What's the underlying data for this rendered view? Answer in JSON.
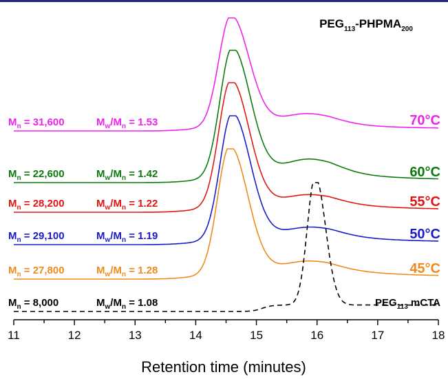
{
  "chart_data": {
    "type": "line",
    "title_parts": {
      "base1": "PEG",
      "sub1": "113",
      "mid": "-PHPMA",
      "sub2": "200"
    },
    "xlabel": "Retention time (minutes)",
    "xlim": [
      11,
      18
    ],
    "x_ticks": [
      "11",
      "12",
      "13",
      "14",
      "15",
      "16",
      "17",
      "18"
    ],
    "grid": false,
    "series": [
      {
        "name": "70°C",
        "color": "#ee22ee",
        "mn_label": "M",
        "mn_sub": "n",
        "mn_text": " = 31,600",
        "pdi_label": "M",
        "pdi_sub1": "w",
        "pdi_mid": "/M",
        "pdi_sub2": "n",
        "pdi_text": " = 1.53",
        "peak_time": 14.58,
        "stroke": "solid"
      },
      {
        "name": "60°C",
        "color": "#0d7a0d",
        "mn_label": "M",
        "mn_sub": "n",
        "mn_text": " = 22,600",
        "pdi_label": "M",
        "pdi_sub1": "w",
        "pdi_mid": "/M",
        "pdi_sub2": "n",
        "pdi_text": " = 1.42",
        "peak_time": 14.6,
        "stroke": "solid"
      },
      {
        "name": "55°C",
        "color": "#e31414",
        "mn_label": "M",
        "mn_sub": "n",
        "mn_text": " = 28,200",
        "pdi_label": "M",
        "pdi_sub1": "w",
        "pdi_mid": "/M",
        "pdi_sub2": "n",
        "pdi_text": " = 1.22",
        "peak_time": 14.58,
        "stroke": "solid"
      },
      {
        "name": "50°C",
        "color": "#1a1acc",
        "mn_label": "M",
        "mn_sub": "n",
        "mn_text": " = 29,100",
        "pdi_label": "M",
        "pdi_sub1": "w",
        "pdi_mid": "/M",
        "pdi_sub2": "n",
        "pdi_text": " = 1.19",
        "peak_time": 14.6,
        "stroke": "solid"
      },
      {
        "name": "45°C",
        "color": "#f08a1c",
        "mn_label": "M",
        "mn_sub": "n",
        "mn_text": " = 27,800",
        "pdi_label": "M",
        "pdi_sub1": "w",
        "pdi_mid": "/M",
        "pdi_sub2": "n",
        "pdi_text": " = 1.28",
        "peak_time": 14.56,
        "stroke": "solid"
      },
      {
        "name": "PEG113 mCTA",
        "name_parts": {
          "base": "PEG",
          "sub": "113",
          "rest": " mCTA"
        },
        "color": "#000000",
        "mn_label": "M",
        "mn_sub": "n",
        "mn_text": " = 8,000",
        "pdi_label": "M",
        "pdi_sub1": "w",
        "pdi_mid": "/M",
        "pdi_sub2": "n",
        "pdi_text": " = 1.08",
        "peak_time": 15.97,
        "stroke": "dashed"
      }
    ]
  }
}
